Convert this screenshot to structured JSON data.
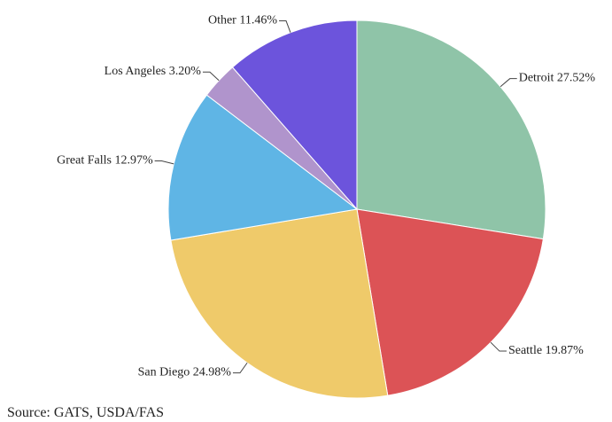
{
  "chart_data": {
    "type": "pie",
    "categories": [
      "Detroit",
      "Seattle",
      "San Diego",
      "Great Falls",
      "Los Angeles",
      "Other"
    ],
    "values": [
      27.52,
      19.87,
      24.98,
      12.97,
      3.2,
      11.46
    ],
    "value_labels": [
      "27.52%",
      "19.87%",
      "24.98%",
      "12.97%",
      "3.20%",
      "11.46%"
    ],
    "colors": [
      "#8fc4a8",
      "#dc5356",
      "#efca6a",
      "#5fb5e5",
      "#b094cc",
      "#6c54dc"
    ],
    "source": "Source: GATS, USDA/FAS"
  }
}
